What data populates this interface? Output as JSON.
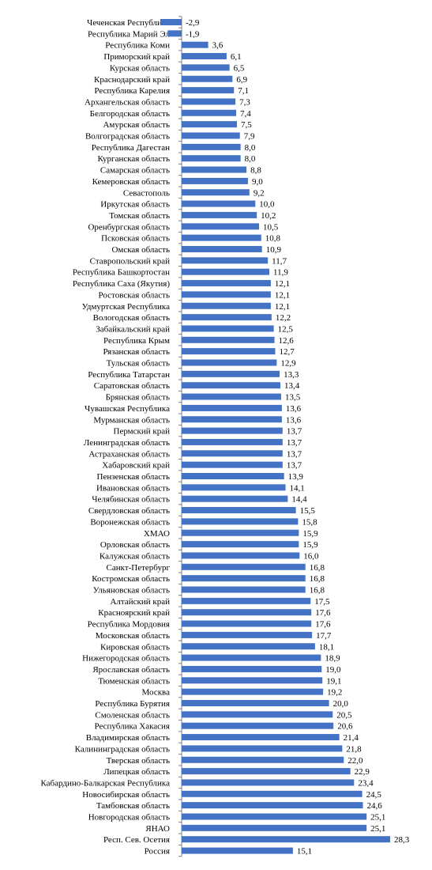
{
  "chart_data": {
    "type": "bar",
    "orientation": "horizontal",
    "bar_color": "#4472C4",
    "axis_color": "#808080",
    "grid": false,
    "legend": "none",
    "xlim": [
      -4,
      30
    ],
    "categories": [
      "Чеченская Республика",
      "Республика Марий Эл",
      "Республика Коми",
      "Приморский край",
      "Курская область",
      "Краснодарский край",
      "Республика Карелия",
      "Архангельская область",
      "Белгородская область",
      "Амурская область",
      "Волгоградская область",
      "Республика Дагестан",
      "Курганская область",
      "Самарская область",
      "Кемеровская область",
      "Севастополь",
      "Иркутская область",
      "Томская область",
      "Оренбургская область",
      "Псковская область",
      "Омская область",
      "Ставропольский край",
      "Республика Башкортостан",
      "Республика Саха (Якутия)",
      "Ростовская область",
      "Удмуртская Республика",
      "Вологодская область",
      "Забайкальский край",
      "Республика Крым",
      "Рязанская область",
      "Тульская область",
      "Республика Татарстан",
      "Саратовская область",
      "Брянская область",
      "Чувашская Республика",
      "Мурманская область",
      "Пермский край",
      "Ленинградская область",
      "Астраханская область",
      "Хабаровский край",
      "Пензенская область",
      "Ивановская область",
      "Челябинская область",
      "Свердловская область",
      "Воронежская область",
      "ХМАО",
      "Орловская область",
      "Калужская область",
      "Санкт-Петербург",
      "Костромская область",
      "Ульяновская область",
      "Алтайский край",
      "Красноярский край",
      "Республика Мордовия",
      "Московская область",
      "Кировская область",
      "Нижегородская область",
      "Ярославская область",
      "Тюменская область",
      "Москва",
      "Республика Бурятия",
      "Смоленская область",
      "Республика Хакасия",
      "Владимирская область",
      "Калининградская область",
      "Тверская область",
      "Липецкая область",
      "Кабардино-Балкарская Республика",
      "Новосибирская область",
      "Тамбовская область",
      "Новгородская область",
      "ЯНАО",
      "Респ. Сев. Осетия",
      "Россия"
    ],
    "values": [
      -2.9,
      -1.9,
      3.6,
      6.1,
      6.5,
      6.9,
      7.1,
      7.3,
      7.4,
      7.5,
      7.9,
      8.0,
      8.0,
      8.8,
      9.0,
      9.2,
      10.0,
      10.2,
      10.5,
      10.8,
      10.9,
      11.7,
      11.9,
      12.1,
      12.1,
      12.1,
      12.2,
      12.5,
      12.6,
      12.7,
      12.9,
      13.3,
      13.4,
      13.5,
      13.6,
      13.6,
      13.7,
      13.7,
      13.7,
      13.7,
      13.9,
      14.1,
      14.4,
      15.5,
      15.8,
      15.9,
      15.9,
      16.0,
      16.8,
      16.8,
      16.8,
      17.5,
      17.6,
      17.6,
      17.7,
      18.1,
      18.9,
      19.0,
      19.1,
      19.2,
      20.0,
      20.5,
      20.6,
      21.4,
      21.8,
      22.0,
      22.9,
      23.4,
      24.5,
      24.6,
      25.1,
      25.1,
      28.3,
      15.1
    ],
    "value_labels": [
      "-2,9",
      "-1,9",
      "3,6",
      "6,1",
      "6,5",
      "6,9",
      "7,1",
      "7,3",
      "7,4",
      "7,5",
      "7,9",
      "8,0",
      "8,0",
      "8,8",
      "9,0",
      "9,2",
      "10,0",
      "10,2",
      "10,5",
      "10,8",
      "10,9",
      "11,7",
      "11,9",
      "12,1",
      "12,1",
      "12,1",
      "12,2",
      "12,5",
      "12,6",
      "12,7",
      "12,9",
      "13,3",
      "13,4",
      "13,5",
      "13,6",
      "13,6",
      "13,7",
      "13,7",
      "13,7",
      "13,7",
      "13,9",
      "14,1",
      "14,4",
      "15,5",
      "15,8",
      "15,9",
      "15,9",
      "16,0",
      "16,8",
      "16,8",
      "16,8",
      "17,5",
      "17,6",
      "17,6",
      "17,7",
      "18,1",
      "18,9",
      "19,0",
      "19,1",
      "19,2",
      "20,0",
      "20,5",
      "20,6",
      "21,4",
      "21,8",
      "22,0",
      "22,9",
      "23,4",
      "24,5",
      "24,6",
      "25,1",
      "25,1",
      "28,3",
      "15,1"
    ]
  }
}
